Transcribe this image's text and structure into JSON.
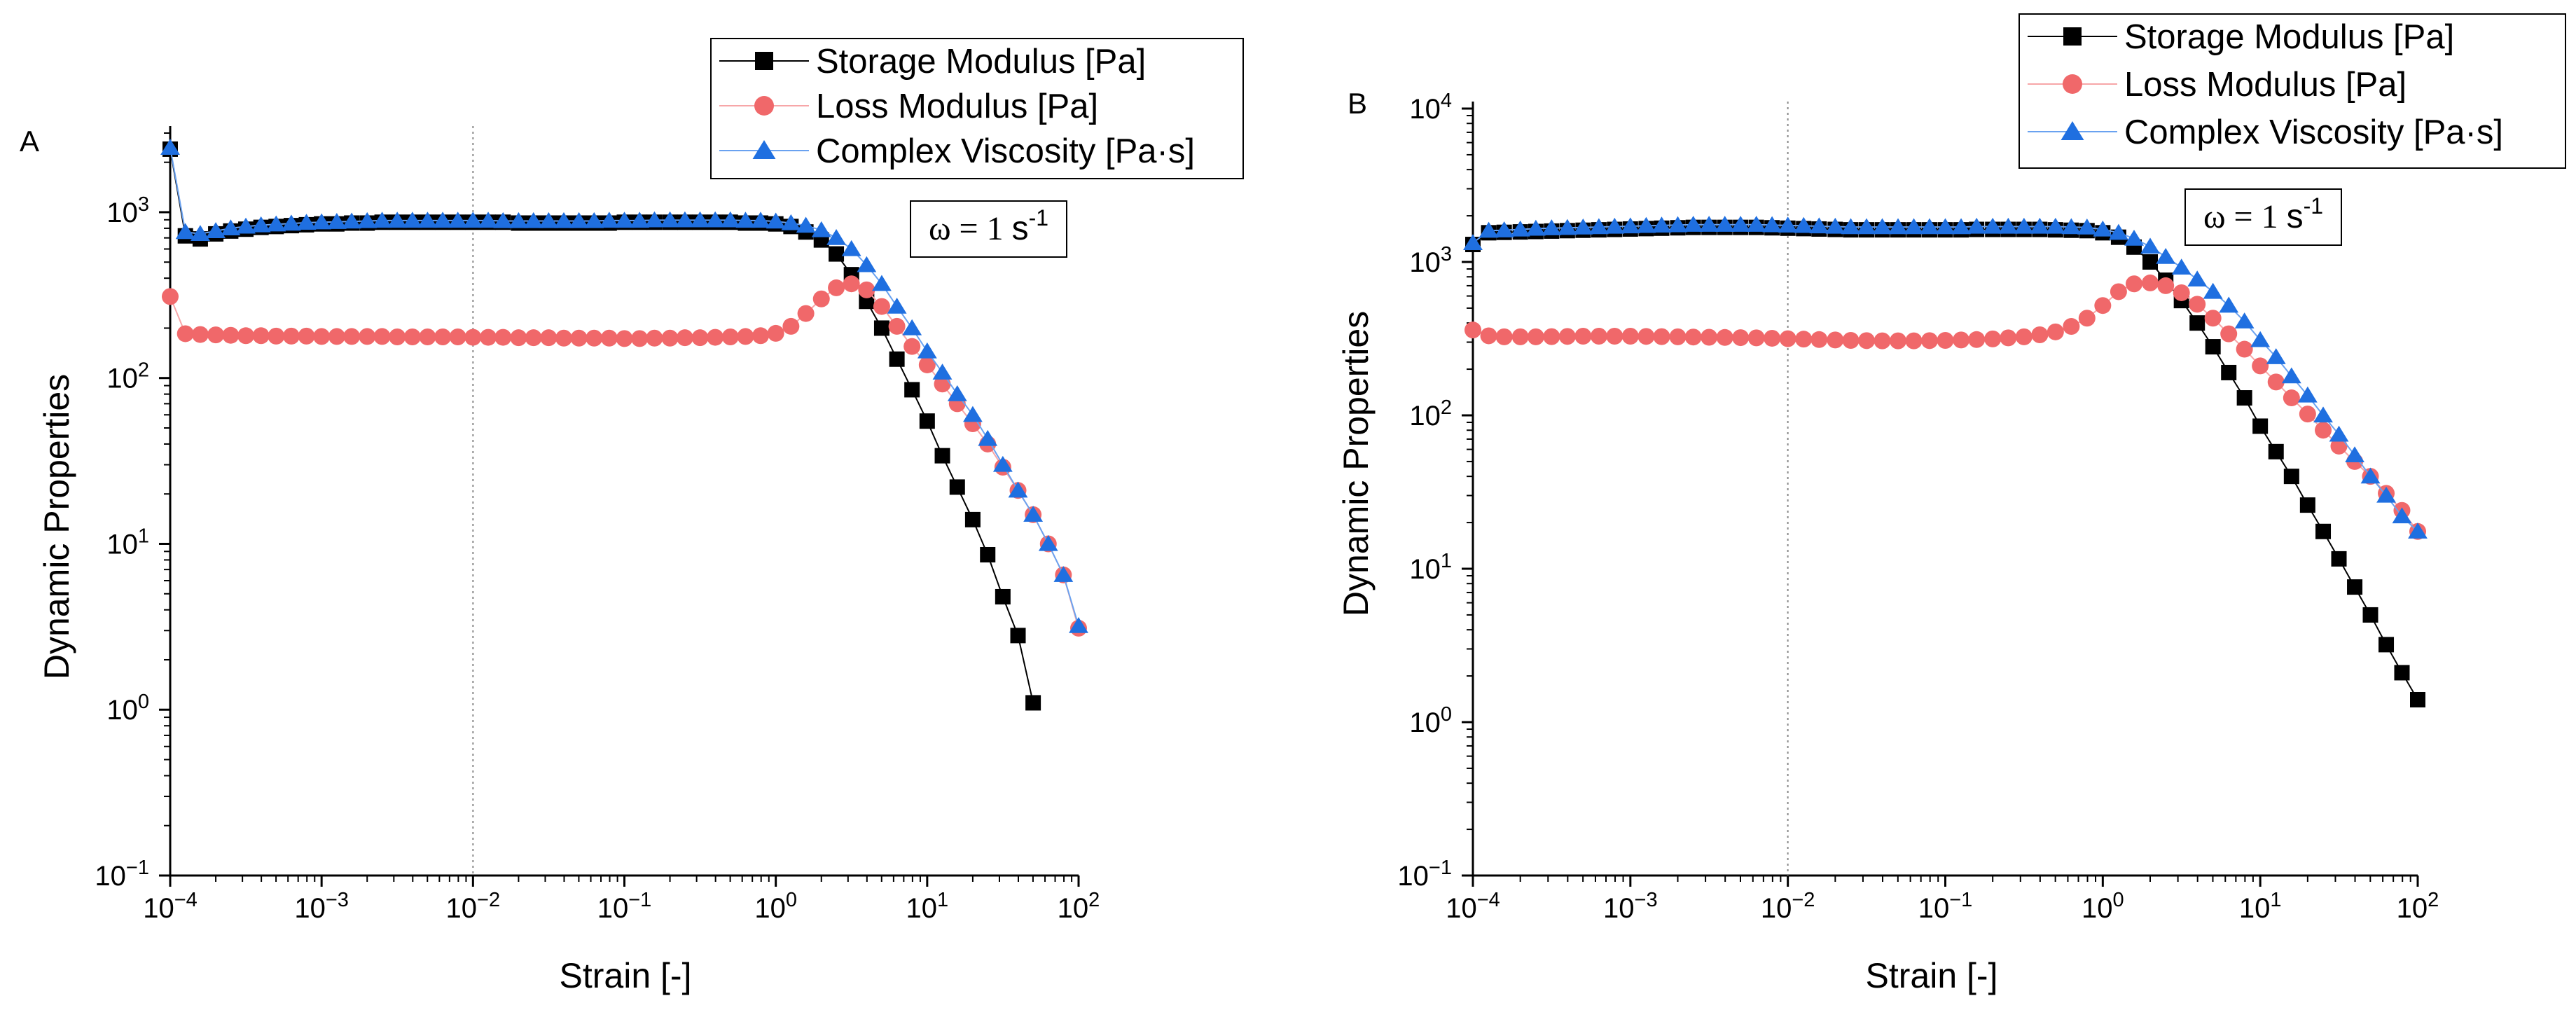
{
  "colors": {
    "storage": "#000000",
    "loss": "#f0686a",
    "viscosity": "#1f6fe0",
    "lossLine": "#f7a6a8",
    "viscLine": "#6aa2f0",
    "refLine": "#888888"
  },
  "chart_data": [
    {
      "type": "line",
      "panel_label": "A",
      "xscale": "log",
      "yscale": "log",
      "xlim": [
        0.0001,
        100
      ],
      "ylim": [
        0.1,
        3000
      ],
      "xlabel": "Strain [-]",
      "ylabel": "Dynamic Properties",
      "x_ticks": [
        {
          "value": 0.0001,
          "base": "10",
          "exp": "−4"
        },
        {
          "value": 0.001,
          "base": "10",
          "exp": "−3"
        },
        {
          "value": 0.01,
          "base": "10",
          "exp": "−2"
        },
        {
          "value": 0.1,
          "base": "10",
          "exp": "−1"
        },
        {
          "value": 1,
          "base": "10",
          "exp": "0"
        },
        {
          "value": 10,
          "base": "10",
          "exp": "1"
        },
        {
          "value": 100,
          "base": "10",
          "exp": "2"
        }
      ],
      "y_ticks": [
        {
          "value": 0.1,
          "base": "10",
          "exp": "−1"
        },
        {
          "value": 1,
          "base": "10",
          "exp": "0"
        },
        {
          "value": 10,
          "base": "10",
          "exp": "1"
        },
        {
          "value": 100,
          "base": "10",
          "exp": "2"
        },
        {
          "value": 1000,
          "base": "10",
          "exp": "3"
        }
      ],
      "reference_line_x": 0.01,
      "annotation": {
        "omega": "ω",
        "equals": " = ",
        "value": "1 ",
        "unit": "s",
        "exp": "-1"
      },
      "legend": [
        {
          "label": "Storage Modulus [Pa]",
          "marker": "square"
        },
        {
          "label": "Loss Modulus [Pa]",
          "marker": "circle"
        },
        {
          "label": "Complex Viscosity [Pa·s]",
          "marker": "triangle"
        }
      ],
      "series": [
        {
          "name": "Storage Modulus [Pa]",
          "x": [
            0.0001,
            0.000126,
            0.000158,
            0.0002,
            0.000251,
            0.000316,
            0.000398,
            0.000501,
            0.000631,
            0.000794,
            0.001,
            0.00126,
            0.00158,
            0.002,
            0.00251,
            0.00316,
            0.00398,
            0.00501,
            0.00631,
            0.00794,
            0.01,
            0.0126,
            0.0158,
            0.02,
            0.0251,
            0.0316,
            0.0398,
            0.0501,
            0.0631,
            0.0794,
            0.1,
            0.126,
            0.158,
            0.2,
            0.251,
            0.316,
            0.398,
            0.501,
            0.631,
            0.794,
            1,
            1.26,
            1.58,
            2,
            2.51,
            3.16,
            3.98,
            5.01,
            6.31,
            7.94,
            10,
            12.6,
            15.8,
            20,
            25.1,
            31.6,
            39.8,
            50.1
          ],
          "values": [
            2400,
            720,
            690,
            740,
            770,
            790,
            810,
            820,
            830,
            840,
            850,
            850,
            860,
            860,
            870,
            870,
            870,
            870,
            870,
            870,
            870,
            870,
            870,
            860,
            860,
            860,
            860,
            860,
            860,
            860,
            870,
            870,
            870,
            870,
            870,
            870,
            870,
            870,
            860,
            860,
            850,
            820,
            760,
            680,
            560,
            420,
            290,
            200,
            130,
            85,
            55,
            34,
            22,
            14,
            8.6,
            4.8,
            2.8,
            1.1
          ]
        },
        {
          "name": "Loss Modulus [Pa]",
          "x": [
            0.0001,
            0.000126,
            0.000158,
            0.0002,
            0.000251,
            0.000316,
            0.000398,
            0.000501,
            0.000631,
            0.000794,
            0.001,
            0.00126,
            0.00158,
            0.002,
            0.00251,
            0.00316,
            0.00398,
            0.00501,
            0.00631,
            0.00794,
            0.01,
            0.0126,
            0.0158,
            0.02,
            0.0251,
            0.0316,
            0.0398,
            0.0501,
            0.0631,
            0.0794,
            0.1,
            0.126,
            0.158,
            0.2,
            0.251,
            0.316,
            0.398,
            0.501,
            0.631,
            0.794,
            1,
            1.26,
            1.58,
            2,
            2.51,
            3.16,
            3.98,
            5.01,
            6.31,
            7.94,
            10,
            12.6,
            15.8,
            20,
            25.1,
            31.6,
            39.8,
            50.1,
            63.1,
            79.4,
            100
          ],
          "values": [
            310,
            185,
            183,
            182,
            181,
            180,
            180,
            179,
            179,
            179,
            178,
            178,
            178,
            178,
            178,
            177,
            177,
            177,
            177,
            177,
            176,
            176,
            176,
            175,
            175,
            175,
            174,
            174,
            174,
            174,
            173,
            173,
            174,
            174,
            175,
            175,
            176,
            177,
            178,
            180,
            186,
            205,
            245,
            300,
            350,
            370,
            340,
            270,
            205,
            155,
            120,
            92,
            70,
            53,
            40,
            29,
            21,
            15,
            10,
            6.5,
            3.1
          ]
        },
        {
          "name": "Complex Viscosity [Pa·s]",
          "x": [
            0.0001,
            0.000126,
            0.000158,
            0.0002,
            0.000251,
            0.000316,
            0.000398,
            0.000501,
            0.000631,
            0.000794,
            0.001,
            0.00126,
            0.00158,
            0.002,
            0.00251,
            0.00316,
            0.00398,
            0.00501,
            0.00631,
            0.00794,
            0.01,
            0.0126,
            0.0158,
            0.02,
            0.0251,
            0.0316,
            0.0398,
            0.0501,
            0.0631,
            0.0794,
            0.1,
            0.126,
            0.158,
            0.2,
            0.251,
            0.316,
            0.398,
            0.501,
            0.631,
            0.794,
            1,
            1.26,
            1.58,
            2,
            2.51,
            3.16,
            3.98,
            5.01,
            6.31,
            7.94,
            10,
            12.6,
            15.8,
            20,
            25.1,
            31.6,
            39.8,
            50.1,
            63.1,
            79.4,
            100
          ],
          "values": [
            2450,
            760,
            740,
            770,
            800,
            820,
            835,
            845,
            855,
            865,
            870,
            875,
            880,
            885,
            890,
            890,
            890,
            890,
            890,
            890,
            890,
            890,
            885,
            885,
            885,
            885,
            885,
            885,
            885,
            890,
            890,
            890,
            895,
            895,
            895,
            895,
            895,
            895,
            890,
            890,
            880,
            860,
            830,
            780,
            700,
            600,
            480,
            370,
            270,
            200,
            145,
            108,
            80,
            60,
            43,
            30,
            21,
            15,
            10,
            6.5,
            3.2
          ]
        }
      ]
    },
    {
      "type": "line",
      "panel_label": "B",
      "xscale": "log",
      "yscale": "log",
      "xlim": [
        0.0001,
        100
      ],
      "ylim": [
        0.1,
        10000
      ],
      "xlabel": "Strain [-]",
      "ylabel": "Dynamic Properties",
      "x_ticks": [
        {
          "value": 0.0001,
          "base": "10",
          "exp": "−4"
        },
        {
          "value": 0.001,
          "base": "10",
          "exp": "−3"
        },
        {
          "value": 0.01,
          "base": "10",
          "exp": "−2"
        },
        {
          "value": 0.1,
          "base": "10",
          "exp": "−1"
        },
        {
          "value": 1,
          "base": "10",
          "exp": "0"
        },
        {
          "value": 10,
          "base": "10",
          "exp": "1"
        },
        {
          "value": 100,
          "base": "10",
          "exp": "2"
        }
      ],
      "y_ticks": [
        {
          "value": 0.1,
          "base": "10",
          "exp": "−1"
        },
        {
          "value": 1,
          "base": "10",
          "exp": "0"
        },
        {
          "value": 10,
          "base": "10",
          "exp": "1"
        },
        {
          "value": 100,
          "base": "10",
          "exp": "2"
        },
        {
          "value": 1000,
          "base": "10",
          "exp": "3"
        },
        {
          "value": 10000,
          "base": "10",
          "exp": "4"
        }
      ],
      "reference_line_x": 0.01,
      "annotation": {
        "omega": "ω",
        "equals": " = ",
        "value": "1 ",
        "unit": "s",
        "exp": "-1"
      },
      "legend": [
        {
          "label": "Storage Modulus [Pa]",
          "marker": "square"
        },
        {
          "label": "Loss Modulus [Pa]",
          "marker": "circle"
        },
        {
          "label": "Complex Viscosity [Pa·s]",
          "marker": "triangle"
        }
      ],
      "series": [
        {
          "name": "Storage Modulus [Pa]",
          "x": [
            0.0001,
            0.000126,
            0.000158,
            0.0002,
            0.000251,
            0.000316,
            0.000398,
            0.000501,
            0.000631,
            0.000794,
            0.001,
            0.00126,
            0.00158,
            0.002,
            0.00251,
            0.00316,
            0.00398,
            0.00501,
            0.00631,
            0.00794,
            0.01,
            0.0126,
            0.0158,
            0.02,
            0.0251,
            0.0316,
            0.0398,
            0.0501,
            0.0631,
            0.0794,
            0.1,
            0.126,
            0.158,
            0.2,
            0.251,
            0.316,
            0.398,
            0.501,
            0.631,
            0.794,
            1,
            1.26,
            1.58,
            2,
            2.51,
            3.16,
            3.98,
            5.01,
            6.31,
            7.94,
            10,
            12.6,
            15.8,
            20,
            25.1,
            31.6,
            39.8,
            50.1,
            63.1,
            79.4,
            100
          ],
          "values": [
            1300,
            1550,
            1560,
            1570,
            1580,
            1590,
            1600,
            1610,
            1620,
            1630,
            1640,
            1650,
            1660,
            1670,
            1680,
            1680,
            1680,
            1680,
            1680,
            1670,
            1660,
            1650,
            1640,
            1630,
            1620,
            1620,
            1620,
            1620,
            1620,
            1620,
            1620,
            1620,
            1630,
            1630,
            1630,
            1630,
            1630,
            1620,
            1610,
            1600,
            1550,
            1450,
            1250,
            1000,
            760,
            560,
            400,
            280,
            190,
            130,
            85,
            58,
            40,
            26,
            17.5,
            11.6,
            7.6,
            5.0,
            3.2,
            2.1,
            1.4
          ]
        },
        {
          "name": "Loss Modulus [Pa]",
          "x": [
            0.0001,
            0.000126,
            0.000158,
            0.0002,
            0.000251,
            0.000316,
            0.000398,
            0.000501,
            0.000631,
            0.000794,
            0.001,
            0.00126,
            0.00158,
            0.002,
            0.00251,
            0.00316,
            0.00398,
            0.00501,
            0.00631,
            0.00794,
            0.01,
            0.0126,
            0.0158,
            0.02,
            0.0251,
            0.0316,
            0.0398,
            0.0501,
            0.0631,
            0.0794,
            0.1,
            0.126,
            0.158,
            0.2,
            0.251,
            0.316,
            0.398,
            0.501,
            0.631,
            0.794,
            1,
            1.26,
            1.58,
            2,
            2.51,
            3.16,
            3.98,
            5.01,
            6.31,
            7.94,
            10,
            12.6,
            15.8,
            20,
            25.1,
            31.6,
            39.8,
            50.1,
            63.1,
            79.4,
            100
          ],
          "values": [
            360,
            330,
            325,
            325,
            325,
            326,
            327,
            328,
            328,
            328,
            328,
            327,
            326,
            325,
            324,
            323,
            322,
            321,
            320,
            318,
            316,
            314,
            312,
            310,
            308,
            307,
            306,
            306,
            306,
            307,
            308,
            310,
            312,
            315,
            320,
            325,
            335,
            350,
            380,
            430,
            520,
            640,
            720,
            730,
            700,
            630,
            530,
            430,
            340,
            270,
            210,
            165,
            130,
            102,
            80,
            63,
            50,
            40,
            31,
            24,
            17.5
          ]
        },
        {
          "name": "Complex Viscosity [Pa·s]",
          "x": [
            0.0001,
            0.000126,
            0.000158,
            0.0002,
            0.000251,
            0.000316,
            0.000398,
            0.000501,
            0.000631,
            0.000794,
            0.001,
            0.00126,
            0.00158,
            0.002,
            0.00251,
            0.00316,
            0.00398,
            0.00501,
            0.00631,
            0.00794,
            0.01,
            0.0126,
            0.0158,
            0.02,
            0.0251,
            0.0316,
            0.0398,
            0.0501,
            0.0631,
            0.0794,
            0.1,
            0.126,
            0.158,
            0.2,
            0.251,
            0.316,
            0.398,
            0.501,
            0.631,
            0.794,
            1,
            1.26,
            1.58,
            2,
            2.51,
            3.16,
            3.98,
            5.01,
            6.31,
            7.94,
            10,
            12.6,
            15.8,
            20,
            25.1,
            31.6,
            39.8,
            50.1,
            63.1,
            79.4,
            100
          ],
          "values": [
            1330,
            1600,
            1610,
            1630,
            1650,
            1660,
            1670,
            1680,
            1690,
            1700,
            1710,
            1720,
            1730,
            1740,
            1750,
            1750,
            1750,
            1750,
            1750,
            1740,
            1730,
            1720,
            1710,
            1700,
            1690,
            1690,
            1690,
            1690,
            1690,
            1690,
            1690,
            1690,
            1700,
            1700,
            1700,
            1700,
            1700,
            1700,
            1690,
            1680,
            1630,
            1550,
            1420,
            1260,
            1080,
            920,
            770,
            640,
            520,
            410,
            310,
            240,
            180,
            135,
            100,
            75,
            55,
            40,
            30,
            22,
            17.5
          ]
        }
      ]
    }
  ]
}
